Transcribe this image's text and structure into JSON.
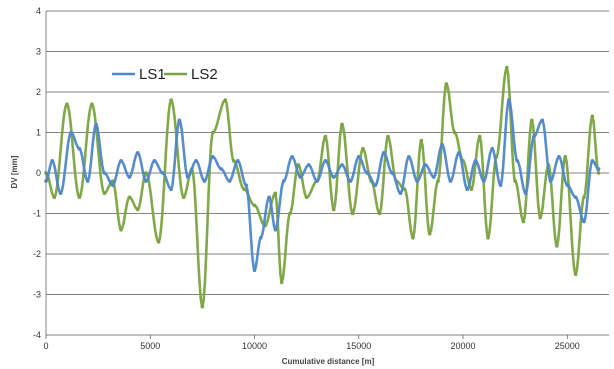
{
  "chart_data": {
    "type": "scatter",
    "title": "",
    "xlabel": "Cumulative distance [m]",
    "ylabel": "DV [mm]",
    "xlim": [
      0,
      27000
    ],
    "ylim": [
      -4,
      4
    ],
    "xticks": [
      0,
      5000,
      10000,
      15000,
      20000,
      25000
    ],
    "xtick_labels": [
      "0",
      "5000",
      "10000",
      "15000",
      "20000",
      "25000"
    ],
    "yticks": [
      -4,
      -3,
      -2,
      -1,
      0,
      1,
      2,
      3,
      4
    ],
    "ytick_labels": [
      "-4",
      "-3",
      "-2",
      "-1",
      "0",
      "1",
      "2",
      "3",
      "4"
    ],
    "grid": "horizontal",
    "legend_placement": "top-left",
    "series": [
      {
        "name": "LS1",
        "color": "#4f87c9",
        "points": [
          [
            0,
            -0.2
          ],
          [
            300,
            0.3
          ],
          [
            700,
            -0.5
          ],
          [
            1200,
            1.0
          ],
          [
            1600,
            0.6
          ],
          [
            2000,
            -0.2
          ],
          [
            2400,
            1.2
          ],
          [
            2800,
            0.0
          ],
          [
            3200,
            -0.3
          ],
          [
            3600,
            0.3
          ],
          [
            4000,
            -0.1
          ],
          [
            4400,
            0.5
          ],
          [
            4800,
            -0.2
          ],
          [
            5200,
            0.3
          ],
          [
            5600,
            0.0
          ],
          [
            6000,
            -0.4
          ],
          [
            6400,
            1.3
          ],
          [
            6800,
            -0.1
          ],
          [
            7200,
            0.3
          ],
          [
            7600,
            -0.2
          ],
          [
            8000,
            0.4
          ],
          [
            8400,
            0.1
          ],
          [
            8800,
            -0.2
          ],
          [
            9200,
            0.3
          ],
          [
            9600,
            -0.3
          ],
          [
            10000,
            -2.4
          ],
          [
            10300,
            -1.6
          ],
          [
            10700,
            -0.6
          ],
          [
            11000,
            -1.4
          ],
          [
            11400,
            -0.2
          ],
          [
            11800,
            0.4
          ],
          [
            12200,
            -0.1
          ],
          [
            12600,
            0.2
          ],
          [
            13000,
            -0.2
          ],
          [
            13400,
            0.3
          ],
          [
            13800,
            -0.1
          ],
          [
            14200,
            0.2
          ],
          [
            14600,
            -0.2
          ],
          [
            15000,
            0.4
          ],
          [
            15400,
            0.0
          ],
          [
            15800,
            -0.3
          ],
          [
            16200,
            0.5
          ],
          [
            16600,
            0.0
          ],
          [
            17000,
            -0.5
          ],
          [
            17400,
            0.4
          ],
          [
            17800,
            -0.2
          ],
          [
            18200,
            0.2
          ],
          [
            18600,
            -0.1
          ],
          [
            19000,
            0.7
          ],
          [
            19400,
            -0.2
          ],
          [
            19800,
            0.5
          ],
          [
            20200,
            -0.4
          ],
          [
            20600,
            0.3
          ],
          [
            21000,
            -0.2
          ],
          [
            21400,
            0.6
          ],
          [
            21800,
            -0.3
          ],
          [
            22200,
            1.8
          ],
          [
            22600,
            0.3
          ],
          [
            23000,
            -0.5
          ],
          [
            23400,
            0.9
          ],
          [
            23800,
            1.3
          ],
          [
            24200,
            -0.2
          ],
          [
            24600,
            0.4
          ],
          [
            25000,
            -0.3
          ],
          [
            25400,
            -0.6
          ],
          [
            25800,
            -1.2
          ],
          [
            26200,
            0.3
          ],
          [
            26500,
            0.1
          ]
        ]
      },
      {
        "name": "LS2",
        "color": "#7aa33f",
        "points": [
          [
            0,
            0.0
          ],
          [
            400,
            -0.6
          ],
          [
            1000,
            1.7
          ],
          [
            1600,
            -0.6
          ],
          [
            2200,
            1.7
          ],
          [
            2800,
            -0.5
          ],
          [
            3200,
            -0.2
          ],
          [
            3600,
            -1.4
          ],
          [
            4000,
            -0.6
          ],
          [
            4400,
            -0.9
          ],
          [
            4800,
            0.0
          ],
          [
            5400,
            -1.7
          ],
          [
            6000,
            1.8
          ],
          [
            6600,
            -0.6
          ],
          [
            7000,
            0.1
          ],
          [
            7500,
            -3.3
          ],
          [
            8000,
            1.0
          ],
          [
            8600,
            1.8
          ],
          [
            9000,
            0.3
          ],
          [
            9500,
            -0.4
          ],
          [
            10000,
            -0.8
          ],
          [
            10500,
            -1.3
          ],
          [
            11000,
            -0.5
          ],
          [
            11300,
            -2.7
          ],
          [
            11700,
            -1.0
          ],
          [
            12100,
            0.2
          ],
          [
            12500,
            -0.6
          ],
          [
            13000,
            -0.2
          ],
          [
            13400,
            0.9
          ],
          [
            13800,
            -0.9
          ],
          [
            14200,
            1.2
          ],
          [
            14700,
            -1.0
          ],
          [
            15200,
            0.6
          ],
          [
            15600,
            -0.2
          ],
          [
            16000,
            -1.0
          ],
          [
            16400,
            0.9
          ],
          [
            16800,
            -0.2
          ],
          [
            17200,
            -0.4
          ],
          [
            17600,
            -1.6
          ],
          [
            18000,
            0.8
          ],
          [
            18400,
            -1.5
          ],
          [
            18800,
            -0.2
          ],
          [
            19200,
            2.2
          ],
          [
            19600,
            1.0
          ],
          [
            20000,
            0.3
          ],
          [
            20400,
            -0.4
          ],
          [
            20800,
            0.9
          ],
          [
            21200,
            -1.6
          ],
          [
            21600,
            0.4
          ],
          [
            22100,
            2.6
          ],
          [
            22500,
            -0.2
          ],
          [
            22900,
            -1.2
          ],
          [
            23300,
            1.3
          ],
          [
            23700,
            -1.1
          ],
          [
            24100,
            0.2
          ],
          [
            24500,
            -1.8
          ],
          [
            24900,
            0.4
          ],
          [
            25400,
            -2.5
          ],
          [
            25800,
            -0.6
          ],
          [
            26200,
            1.4
          ],
          [
            26500,
            0.0
          ]
        ]
      }
    ]
  }
}
